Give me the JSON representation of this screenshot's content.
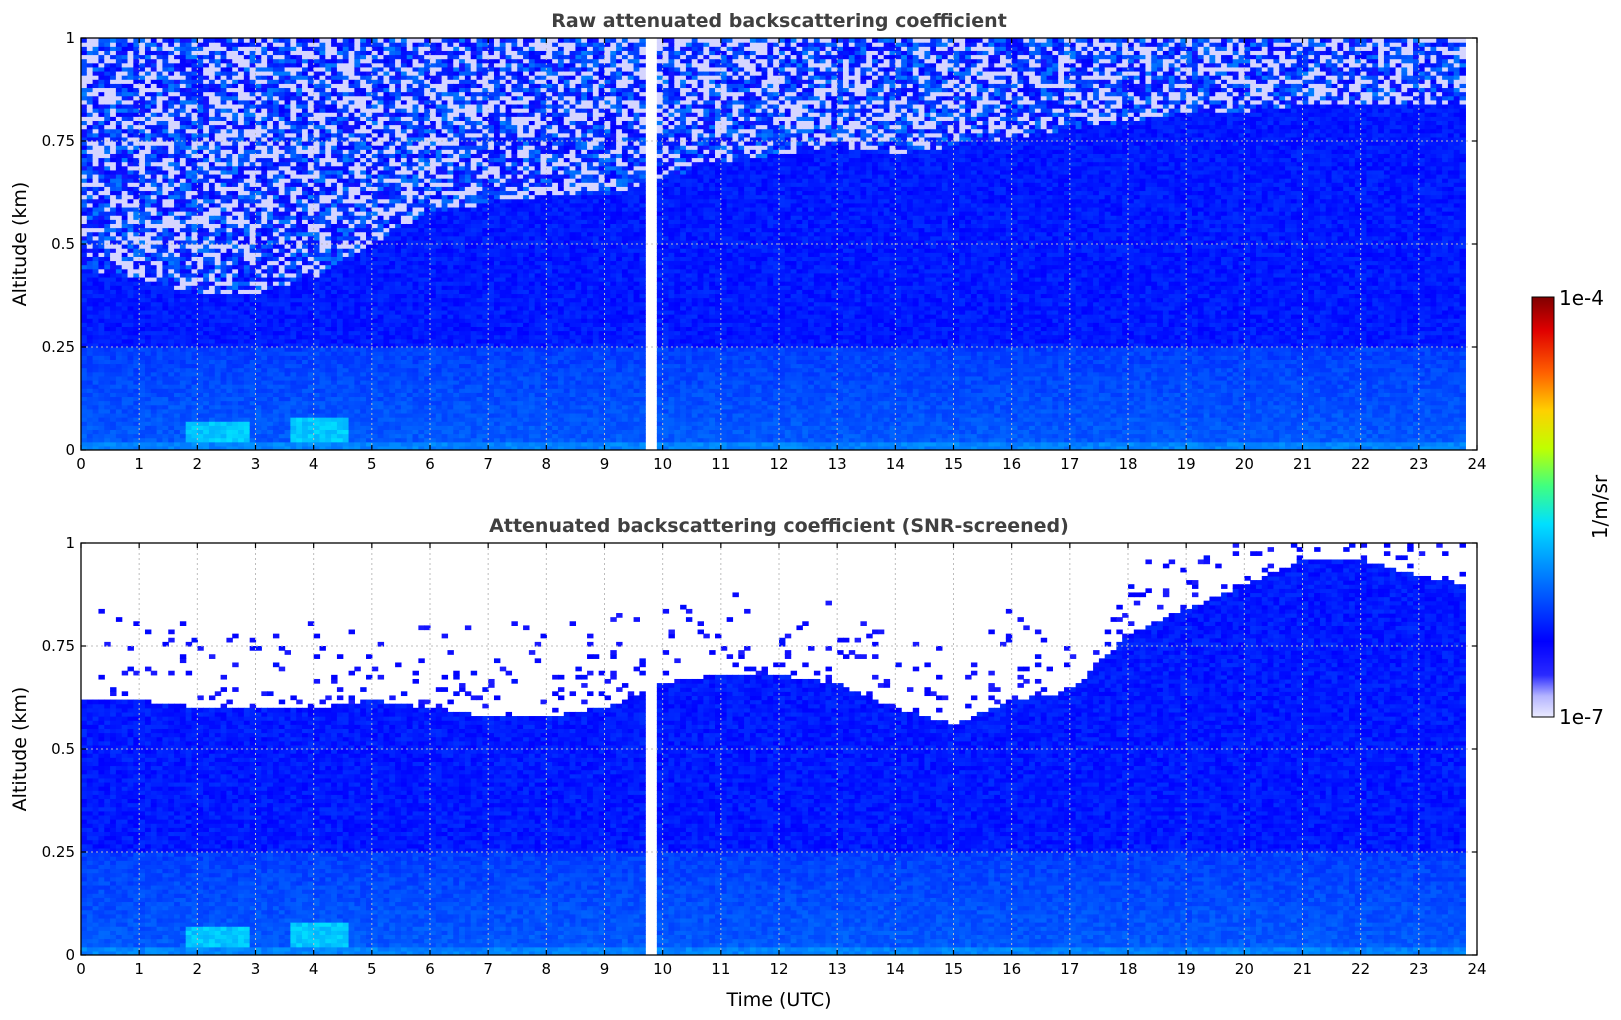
{
  "colors": {
    "background": "#ffffff",
    "title": "#404040",
    "colormap": [
      "#ebebff",
      "#b4b4ff",
      "#2a2aff",
      "#0000ff",
      "#0050ff",
      "#00a0ff",
      "#00e0ff",
      "#40ff80",
      "#c0ff00",
      "#ffd000",
      "#ff6000",
      "#e00000",
      "#800000"
    ]
  },
  "colorbar": {
    "max_label": "1e-4",
    "min_label": "1e-7",
    "unit_label": "1/m/sr",
    "range": [
      1e-07,
      0.0001
    ],
    "scale": "log"
  },
  "chart_data": [
    {
      "type": "heatmap",
      "title": "Raw attenuated backscattering coefficient",
      "xlabel": "",
      "ylabel": "Altitude (km)",
      "xlim": [
        0,
        24
      ],
      "ylim": [
        0,
        1
      ],
      "xticks": [
        "0",
        "1",
        "2",
        "3",
        "4",
        "5",
        "6",
        "7",
        "8",
        "9",
        "10",
        "11",
        "12",
        "13",
        "14",
        "15",
        "16",
        "17",
        "18",
        "19",
        "20",
        "21",
        "22",
        "23",
        "24"
      ],
      "yticks": [
        "0",
        "0.25",
        "0.5",
        "0.75",
        "1"
      ],
      "grid": true,
      "x_coverage": [
        0,
        23.8
      ],
      "data_gap": [
        9.7,
        9.95
      ],
      "screened": false,
      "boundary_layer_top_km": [
        [
          0,
          0.44
        ],
        [
          1,
          0.42
        ],
        [
          2,
          0.38
        ],
        [
          3,
          0.38
        ],
        [
          4,
          0.42
        ],
        [
          5,
          0.5
        ],
        [
          6,
          0.58
        ],
        [
          7,
          0.6
        ],
        [
          8,
          0.62
        ],
        [
          9,
          0.62
        ],
        [
          10,
          0.66
        ],
        [
          11,
          0.7
        ],
        [
          12,
          0.72
        ],
        [
          13,
          0.74
        ],
        [
          14,
          0.72
        ],
        [
          15,
          0.74
        ],
        [
          16,
          0.76
        ],
        [
          17,
          0.78
        ],
        [
          18,
          0.8
        ],
        [
          19,
          0.82
        ],
        [
          20,
          0.82
        ],
        [
          21,
          0.84
        ],
        [
          22,
          0.84
        ],
        [
          23,
          0.84
        ],
        [
          23.8,
          0.84
        ]
      ],
      "surface_enhancement": [
        {
          "x_start": 1.8,
          "x_end": 2.9,
          "peak_km": 0.04
        },
        {
          "x_start": 3.6,
          "x_end": 4.6,
          "peak_km": 0.05
        }
      ]
    },
    {
      "type": "heatmap",
      "title": "Attenuated backscattering coefficient (SNR-screened)",
      "xlabel": "Time (UTC)",
      "ylabel": "Altitude (km)",
      "xlim": [
        0,
        24
      ],
      "ylim": [
        0,
        1
      ],
      "xticks": [
        "0",
        "1",
        "2",
        "3",
        "4",
        "5",
        "6",
        "7",
        "8",
        "9",
        "10",
        "11",
        "12",
        "13",
        "14",
        "15",
        "16",
        "17",
        "18",
        "19",
        "20",
        "21",
        "22",
        "23",
        "24"
      ],
      "yticks": [
        "0",
        "0.25",
        "0.5",
        "0.75",
        "1"
      ],
      "grid": true,
      "x_coverage": [
        0,
        23.8
      ],
      "data_gap": [
        9.7,
        9.95
      ],
      "screened": true,
      "boundary_layer_top_km": [
        [
          0,
          0.62
        ],
        [
          1,
          0.62
        ],
        [
          2,
          0.6
        ],
        [
          3,
          0.6
        ],
        [
          4,
          0.6
        ],
        [
          5,
          0.62
        ],
        [
          6,
          0.6
        ],
        [
          7,
          0.58
        ],
        [
          8,
          0.58
        ],
        [
          9,
          0.6
        ],
        [
          10,
          0.66
        ],
        [
          11,
          0.68
        ],
        [
          12,
          0.68
        ],
        [
          13,
          0.66
        ],
        [
          14,
          0.6
        ],
        [
          15,
          0.56
        ],
        [
          16,
          0.62
        ],
        [
          17,
          0.64
        ],
        [
          18,
          0.78
        ],
        [
          19,
          0.84
        ],
        [
          20,
          0.9
        ],
        [
          21,
          0.96
        ],
        [
          22,
          0.96
        ],
        [
          23,
          0.92
        ],
        [
          23.8,
          0.9
        ]
      ],
      "surface_enhancement": [
        {
          "x_start": 1.8,
          "x_end": 2.9,
          "peak_km": 0.04
        },
        {
          "x_start": 3.6,
          "x_end": 4.6,
          "peak_km": 0.05
        }
      ]
    }
  ]
}
